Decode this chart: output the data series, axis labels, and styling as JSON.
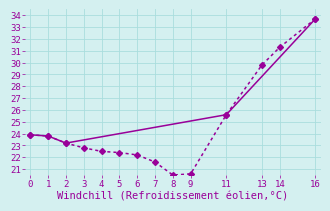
{
  "line1_x": [
    0,
    1,
    2,
    11,
    16
  ],
  "line1_y": [
    23.9,
    23.8,
    23.2,
    25.6,
    33.7
  ],
  "line2_x": [
    0,
    1,
    2,
    3,
    4,
    5,
    6,
    7,
    8,
    9,
    11,
    13,
    14,
    16
  ],
  "line2_y": [
    23.9,
    23.8,
    23.2,
    22.8,
    22.5,
    22.4,
    22.2,
    21.6,
    20.5,
    20.6,
    25.6,
    29.8,
    31.3,
    33.7
  ],
  "line_color": "#990099",
  "bg_color": "#d4f0f0",
  "grid_color": "#aadddd",
  "xlabel": "Windchill (Refroidissement éolien,°C)",
  "ylim_min": 20.5,
  "ylim_max": 34.5,
  "xlim_min": -0.3,
  "xlim_max": 16.3,
  "yticks": [
    21,
    22,
    23,
    24,
    25,
    26,
    27,
    28,
    29,
    30,
    31,
    32,
    33,
    34
  ],
  "xticks": [
    0,
    1,
    2,
    3,
    4,
    5,
    6,
    7,
    8,
    9,
    11,
    13,
    14,
    16
  ],
  "marker": "D",
  "markersize": 3,
  "linewidth": 1.1,
  "xlabel_color": "#990099",
  "xlabel_fontsize": 7.5,
  "tick_fontsize": 6.5,
  "tick_color": "#990099"
}
